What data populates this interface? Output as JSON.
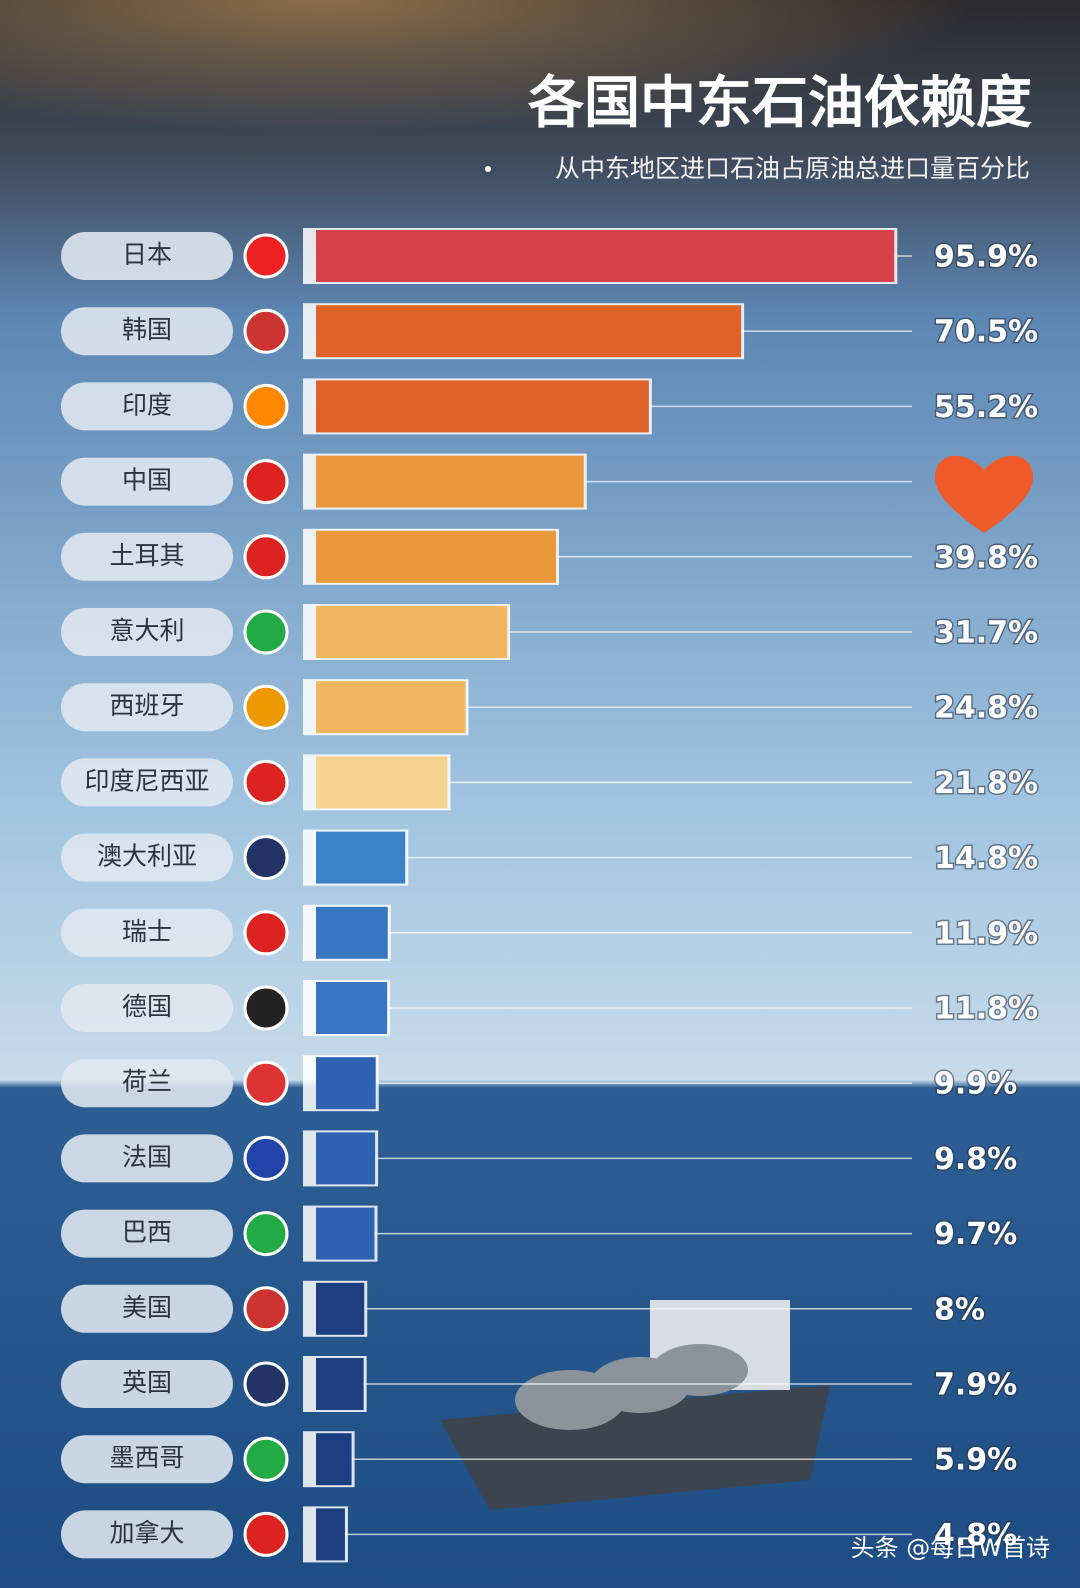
{
  "chart_data": {
    "type": "bar",
    "orientation": "horizontal",
    "title": "各国中东石油依赖度",
    "subtitle": "从中东地区进口石油占原油总进口量百分比",
    "categories": [
      "日本",
      "韩国",
      "印度",
      "中国",
      "土耳其",
      "意大利",
      "西班牙",
      "印度尼西亚",
      "澳大利亚",
      "瑞士",
      "德国",
      "荷兰",
      "法国",
      "巴西",
      "美国",
      "英国",
      "墨西哥",
      "加拿大"
    ],
    "values": [
      95.9,
      70.5,
      55.2,
      44.4,
      39.8,
      31.7,
      24.8,
      21.8,
      14.8,
      11.9,
      11.8,
      9.9,
      9.8,
      9.7,
      8,
      7.9,
      5.9,
      4.8
    ],
    "value_labels": [
      "95.9%",
      "70.5%",
      "55.2%",
      null,
      "39.8%",
      "31.7%",
      "24.8%",
      "21.8%",
      "14.8%",
      "11.9%",
      "11.8%",
      "9.9%",
      "9.8%",
      "9.7%",
      "8%",
      "7.9%",
      "5.9%",
      "4.8%"
    ],
    "colors": [
      "#d8434b",
      "#df6328",
      "#df6328",
      "#ea983c",
      "#ea983c",
      "#f0b660",
      "#f0b660",
      "#f4d38f",
      "#3b82c6",
      "#3777c0",
      "#3777c0",
      "#2f62b0",
      "#2f62b0",
      "#2f62b0",
      "#1d3f82",
      "#1d3f82",
      "#1d3f82",
      "#1d3f82"
    ],
    "watermark": "头条 @每日W首诗"
  }
}
